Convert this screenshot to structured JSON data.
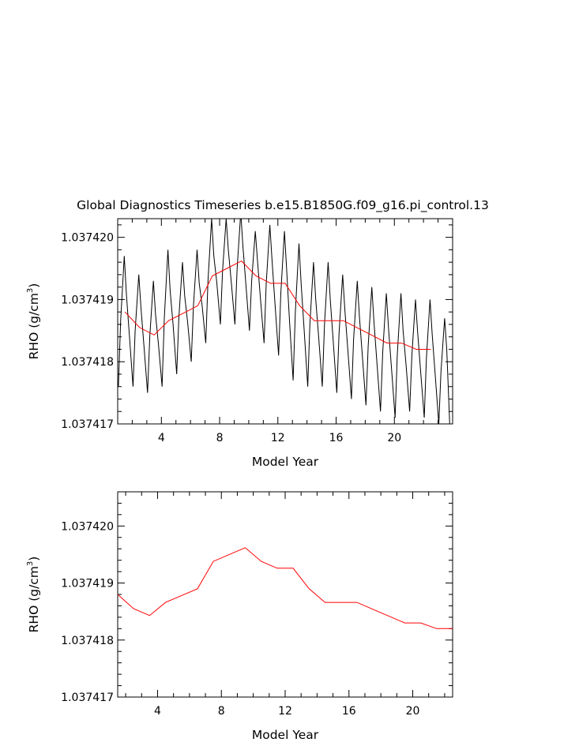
{
  "title": "Global Diagnostics Timeseries b.e15.B1850G.f09_g16.pi_control.13",
  "chart_data": [
    {
      "type": "line",
      "xlabel": "Model Year",
      "ylabel_main": "RHO (g/cm",
      "ylabel_sup": "3",
      "ylabel_tail": ")",
      "xlim": [
        1.0,
        24.0
      ],
      "ylim": [
        1.037417,
        1.0374203
      ],
      "xticks": [
        4,
        8,
        12,
        16,
        20
      ],
      "xtick_labels": [
        "4",
        "8",
        "12",
        "16",
        "20"
      ],
      "yticks": [
        1.037417,
        1.037418,
        1.037419,
        1.03742
      ],
      "ytick_labels": [
        "1.037417",
        "1.037418",
        "1.037419",
        "1.037420"
      ],
      "series": [
        {
          "name": "monthly",
          "color": "#000000",
          "seasonal": {
            "peaks": [
              1.0374197,
              1.0374194,
              1.0374193,
              1.0374198,
              1.0374196,
              1.0374198,
              1.0374203,
              1.0374203,
              1.0374204,
              1.0374201,
              1.0374202,
              1.0374201,
              1.0374199,
              1.0374196,
              1.0374196,
              1.0374194,
              1.0374193,
              1.0374192,
              1.0374191,
              1.0374191,
              1.037419,
              1.037419,
              1.0374187
            ],
            "troughs": [
              1.0374176,
              1.0374176,
              1.0374175,
              1.0374176,
              1.0374178,
              1.037418,
              1.0374183,
              1.0374186,
              1.0374186,
              1.0374185,
              1.0374183,
              1.0374181,
              1.0374177,
              1.0374176,
              1.0374176,
              1.0374175,
              1.0374174,
              1.0374173,
              1.0374172,
              1.0374171,
              1.0374172,
              1.0374171,
              1.037417
            ]
          }
        },
        {
          "name": "annual mean",
          "color": "#ff0000",
          "x": [
            1.5,
            2.5,
            3.5,
            4.5,
            5.5,
            6.5,
            7.5,
            8.5,
            9.5,
            10.5,
            11.5,
            12.5,
            13.5,
            14.5,
            15.5,
            16.5,
            17.5,
            18.5,
            19.5,
            20.5,
            21.5,
            22.5
          ],
          "y": [
            1.0374188,
            1.03741855,
            1.03741843,
            1.03741866,
            1.03741878,
            1.0374189,
            1.03741938,
            1.0374195,
            1.03741962,
            1.03741938,
            1.03741926,
            1.03741926,
            1.0374189,
            1.03741866,
            1.03741866,
            1.03741866,
            1.03741854,
            1.03741842,
            1.0374183,
            1.0374183,
            1.0374182,
            1.0374182
          ]
        }
      ]
    },
    {
      "type": "line",
      "xlabel": "Model Year",
      "ylabel_main": "RHO (g/cm",
      "ylabel_sup": "3",
      "ylabel_tail": ")",
      "xlim": [
        1.5,
        22.5
      ],
      "ylim": [
        1.037417,
        1.0374206
      ],
      "xticks": [
        4,
        8,
        12,
        16,
        20
      ],
      "xtick_labels": [
        "4",
        "8",
        "12",
        "16",
        "20"
      ],
      "yticks": [
        1.037417,
        1.037418,
        1.037419,
        1.03742
      ],
      "ytick_labels": [
        "1.037417",
        "1.037418",
        "1.037419",
        "1.037420"
      ],
      "series": [
        {
          "name": "annual mean",
          "color": "#ff0000",
          "x": [
            1.5,
            2.5,
            3.5,
            4.5,
            5.5,
            6.5,
            7.5,
            8.5,
            9.5,
            10.5,
            11.5,
            12.5,
            13.5,
            14.5,
            15.5,
            16.5,
            17.5,
            18.5,
            19.5,
            20.5,
            21.5,
            22.5
          ],
          "y": [
            1.0374188,
            1.03741855,
            1.03741843,
            1.03741866,
            1.03741878,
            1.0374189,
            1.03741938,
            1.0374195,
            1.03741962,
            1.03741938,
            1.03741926,
            1.03741926,
            1.0374189,
            1.03741866,
            1.03741866,
            1.03741866,
            1.03741854,
            1.03741842,
            1.0374183,
            1.0374183,
            1.0374182,
            1.0374182
          ]
        }
      ]
    }
  ]
}
